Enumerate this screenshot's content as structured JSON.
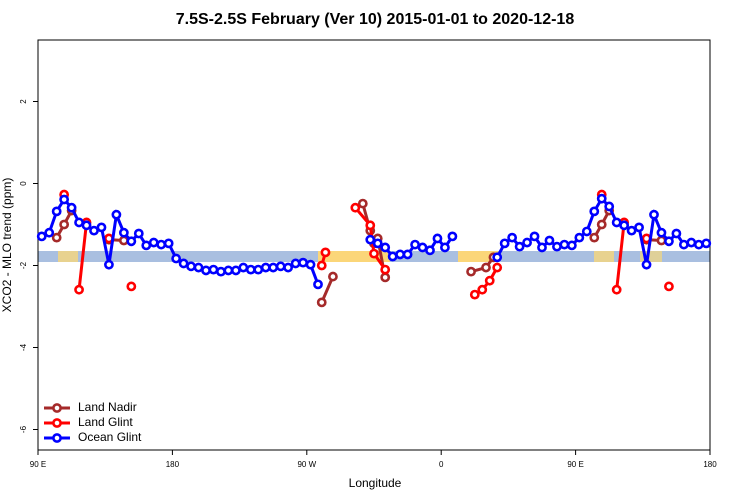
{
  "chart_data": {
    "type": "line",
    "title": "7.5S-2.5S February (Ver 10)   2015-01-01 to 2020-12-18",
    "x_label": "Longitude",
    "y_label": "XCO2 - MLO trend (ppm)",
    "xlim": [
      90,
      540
    ],
    "ylim": [
      -6.5,
      3.5
    ],
    "xticks": [
      {
        "value": 90,
        "label": "90 E"
      },
      180,
      {
        "value": 270,
        "label": "90 W"
      },
      {
        "value": 360,
        "label": "0"
      },
      {
        "value": 450,
        "label": "90 E"
      },
      {
        "value": 540,
        "label": "180"
      }
    ],
    "yticks": [
      -6,
      -4,
      -2,
      0,
      2
    ],
    "legend": "bottomleft",
    "series": [
      {
        "name": "Land Nadir",
        "color": "#a52a2a",
        "x": [
          102.5,
          107.5,
          112.5,
          125,
          137.5,
          147.5,
          200,
          280,
          287.5,
          297.5,
          307.5,
          312.5,
          315,
          317.5,
          322.5,
          350,
          380,
          390,
          395,
          430,
          462.5,
          467.5,
          472.5,
          485,
          497.5,
          507.5
        ],
        "values": [
          -1.32,
          -1.0,
          -0.66,
          null,
          -1.37,
          -1.39,
          null,
          -2.9,
          -2.27,
          null,
          -0.49,
          -1.15,
          -1.46,
          -1.34,
          -2.29,
          null,
          -2.15,
          -2.05,
          -1.8,
          null,
          -1.32,
          -1.0,
          -0.66,
          null,
          -1.37,
          -1.39
        ]
      },
      {
        "name": "Land Glint",
        "color": "#ff0000",
        "x": [
          107.5,
          112.5,
          117.5,
          122.5,
          130,
          137.5,
          145,
          152.5,
          200,
          280,
          282.5,
          290,
          302.5,
          312.5,
          315,
          322.5,
          350,
          382.5,
          387.5,
          392.5,
          397.5,
          430,
          467.5,
          472.5,
          477.5,
          482.5,
          490,
          497.5,
          505,
          512.5
        ],
        "values": [
          -0.27,
          null,
          -2.59,
          -0.95,
          null,
          -1.34,
          null,
          -2.51,
          null,
          -2.0,
          -1.68,
          null,
          -0.59,
          -1.02,
          -1.71,
          -2.1,
          null,
          -2.71,
          -2.59,
          -2.37,
          -2.05,
          null,
          -0.27,
          null,
          -2.59,
          -0.95,
          null,
          -1.34,
          null,
          -2.51
        ]
      },
      {
        "name": "Ocean Glint",
        "color": "#0000ff",
        "x": [
          92.5,
          97.5,
          102.5,
          107.5,
          112.5,
          117.5,
          122.5,
          127.5,
          132.5,
          137.5,
          142.5,
          147.5,
          152.5,
          157.5,
          162.5,
          167.5,
          172.5,
          177.5,
          182.5,
          187.5,
          192.5,
          197.5,
          202.5,
          207.5,
          212.5,
          217.5,
          222.5,
          227.5,
          232.5,
          237.5,
          242.5,
          247.5,
          252.5,
          257.5,
          262.5,
          267.5,
          272.5,
          277.5,
          295,
          312.5,
          317.5,
          322.5,
          327.5,
          332.5,
          337.5,
          342.5,
          347.5,
          352.5,
          357.5,
          362.5,
          367.5,
          382.5,
          397.5,
          402.5,
          407.5,
          412.5,
          417.5,
          422.5,
          427.5,
          432.5,
          437.5,
          442.5,
          447.5,
          452.5,
          457.5,
          462.5,
          467.5,
          472.5,
          477.5,
          482.5,
          487.5,
          492.5,
          497.5,
          502.5,
          507.5,
          512.5,
          517.5,
          522.5,
          527.5,
          532.5,
          537.5
        ],
        "values": [
          -1.29,
          -1.2,
          -0.68,
          -0.39,
          -0.59,
          -0.95,
          -1.02,
          -1.15,
          -1.07,
          -1.98,
          -0.76,
          -1.2,
          -1.41,
          -1.22,
          -1.51,
          -1.44,
          -1.49,
          -1.46,
          -1.83,
          -1.95,
          -2.02,
          -2.05,
          -2.12,
          -2.1,
          -2.15,
          -2.12,
          -2.12,
          -2.05,
          -2.1,
          -2.1,
          -2.05,
          -2.05,
          -2.02,
          -2.05,
          -1.95,
          -1.93,
          -1.98,
          -2.46,
          null,
          -1.37,
          -1.46,
          -1.56,
          -1.78,
          -1.73,
          -1.73,
          -1.49,
          -1.56,
          -1.63,
          -1.34,
          -1.56,
          -1.29,
          null,
          -1.8,
          -1.46,
          -1.32,
          -1.54,
          -1.44,
          -1.29,
          -1.56,
          -1.39,
          -1.54,
          -1.49,
          -1.51,
          -1.32,
          -1.17,
          -0.68,
          -0.37,
          -0.56,
          -0.95,
          -1.02,
          -1.15,
          -1.07,
          -1.98,
          -0.76,
          -1.2,
          -1.41,
          -1.22,
          -1.49,
          -1.44,
          -1.49,
          -1.46
        ]
      }
    ]
  }
}
